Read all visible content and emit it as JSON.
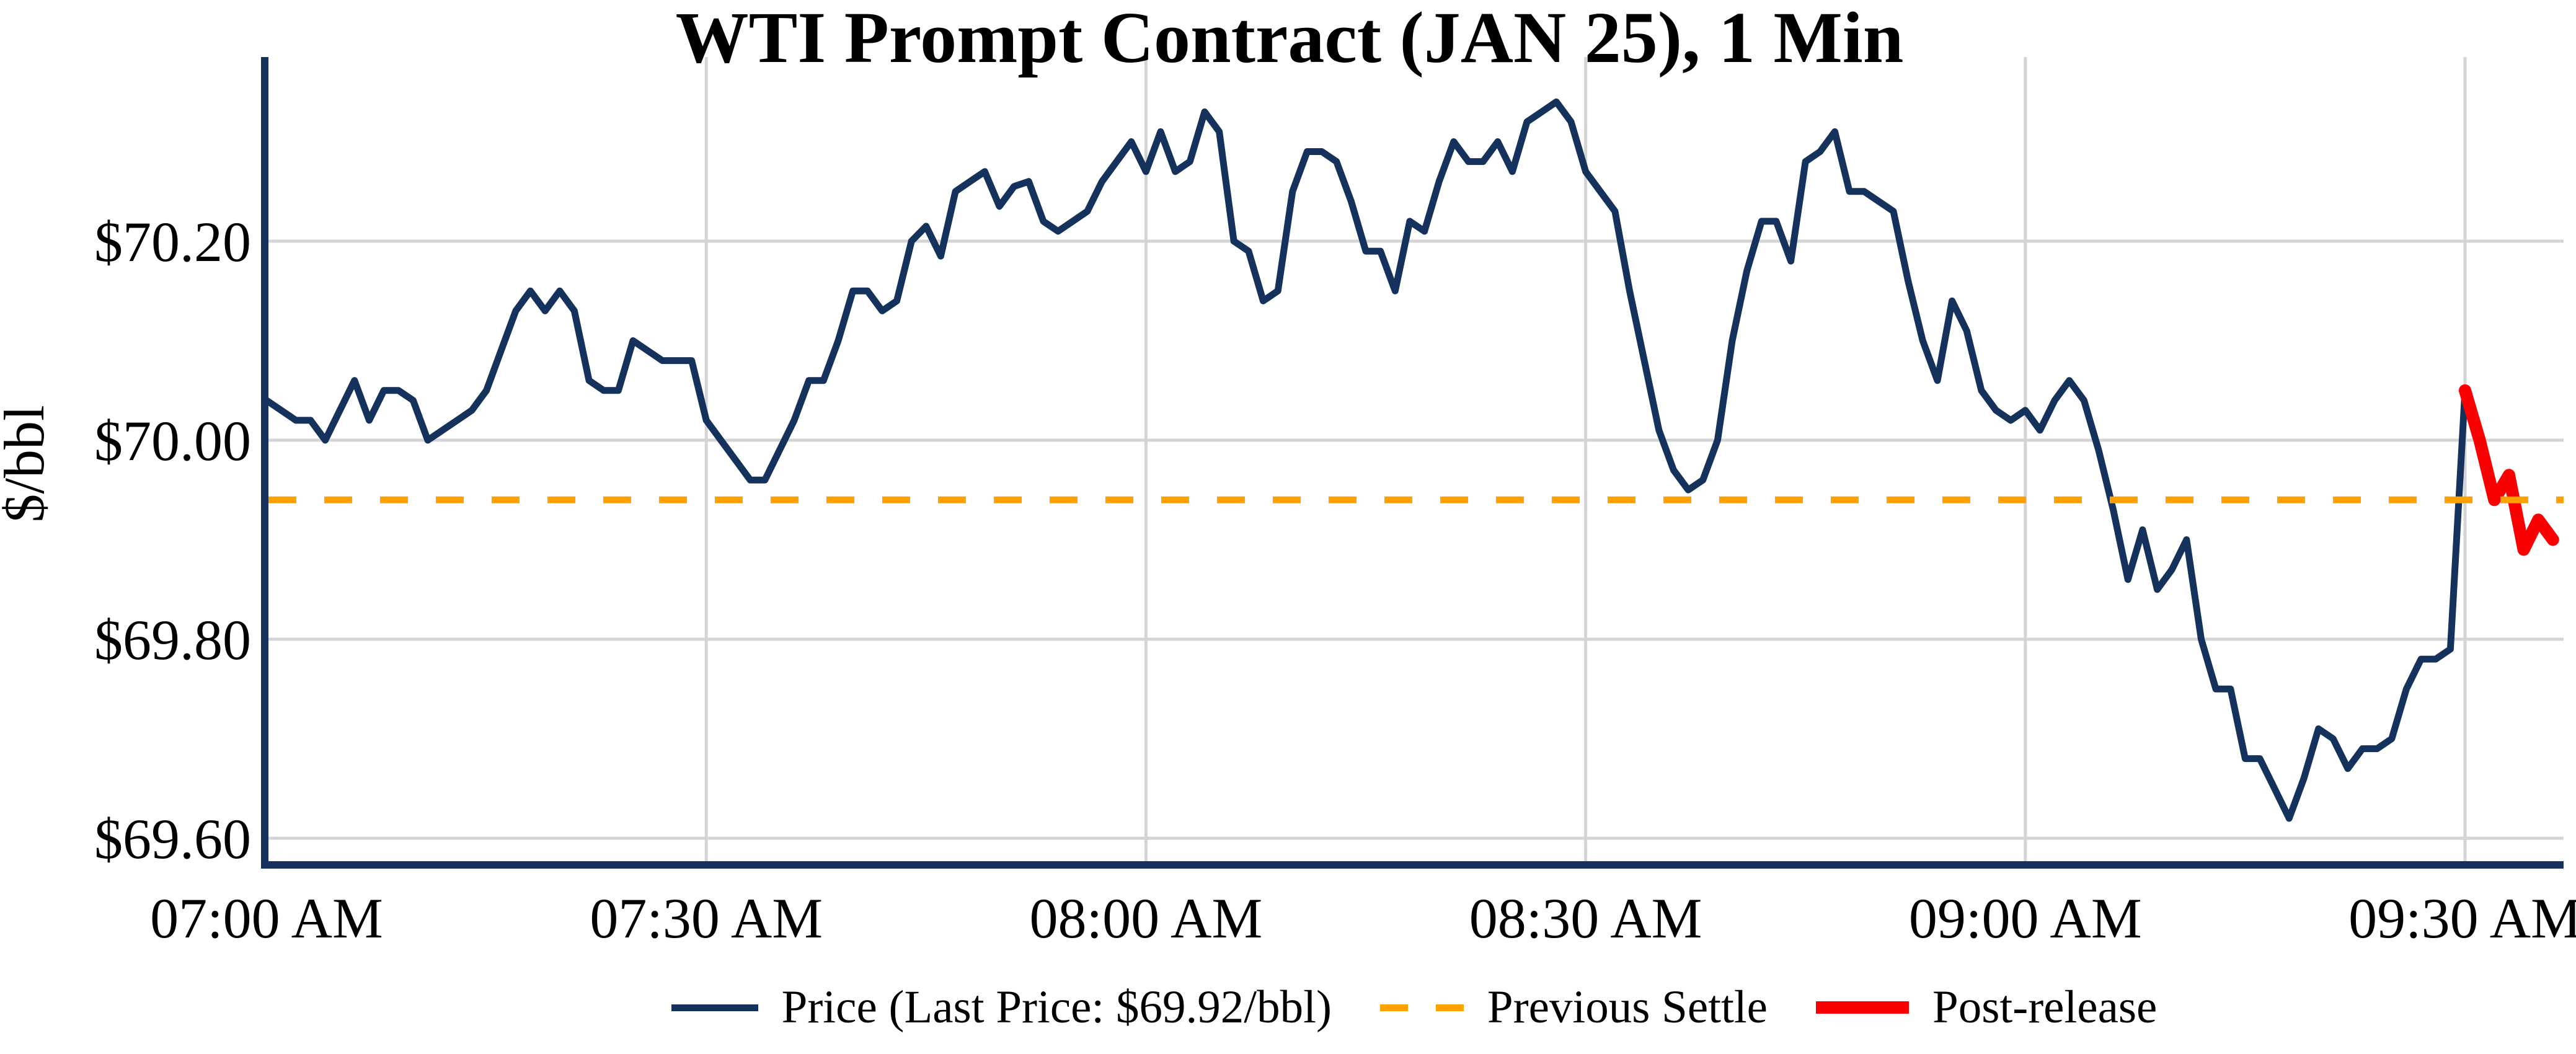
{
  "title": "WTI Prompt Contract (JAN 25), 1 Min",
  "y_axis": {
    "label": "$/bbl",
    "ticks": [
      {
        "label": "$69.60",
        "value": 69.6
      },
      {
        "label": "$69.80",
        "value": 69.8
      },
      {
        "label": "$70.00",
        "value": 70.0
      },
      {
        "label": "$70.20",
        "value": 70.2
      }
    ]
  },
  "x_axis": {
    "ticks": [
      {
        "label": "07:00 AM",
        "minute": 0
      },
      {
        "label": "07:30 AM",
        "minute": 30
      },
      {
        "label": "08:00 AM",
        "minute": 60
      },
      {
        "label": "08:30 AM",
        "minute": 90
      },
      {
        "label": "09:00 AM",
        "minute": 120
      },
      {
        "label": "09:30 AM",
        "minute": 150
      }
    ]
  },
  "legend": {
    "price_label": "Price (Last Price: $69.92/bbl)",
    "settle_label": "Previous Settle",
    "post_label": "Post-release"
  },
  "colors": {
    "price": "#14325C",
    "settle": "#FFA200",
    "post": "#FA0000",
    "grid": "#D4D4D4",
    "axis": "#14325C",
    "text": "#000000",
    "background": "#FFFFFF"
  },
  "chart_data": {
    "type": "line",
    "title": "WTI Prompt Contract (JAN 25), 1 Min",
    "xlabel": "",
    "ylabel": "$/bbl",
    "x_unit": "minutes since 07:00 AM, 1-minute intervals",
    "x_tick_labels": [
      "07:00 AM",
      "07:30 AM",
      "08:00 AM",
      "08:30 AM",
      "09:00 AM",
      "09:30 AM"
    ],
    "x_tick_minutes": [
      0,
      30,
      60,
      90,
      120,
      150
    ],
    "ylim": [
      69.575,
      70.385
    ],
    "xlim_minutes": [
      0,
      156.8
    ],
    "grid": true,
    "legend_position": "bottom",
    "previous_settle": 69.94,
    "last_price": 69.92,
    "series": [
      {
        "name": "Price",
        "type": "line",
        "color": "#14325C",
        "start_minute": 0,
        "step_minutes": 1,
        "values": [
          70.04,
          70.03,
          70.02,
          70.02,
          70.0,
          70.03,
          70.06,
          70.02,
          70.05,
          70.05,
          70.04,
          70.0,
          70.01,
          70.02,
          70.03,
          70.05,
          70.09,
          70.13,
          70.15,
          70.13,
          70.15,
          70.13,
          70.06,
          70.05,
          70.05,
          70.1,
          70.09,
          70.08,
          70.08,
          70.08,
          70.02,
          70.0,
          69.98,
          69.96,
          69.96,
          69.99,
          70.02,
          70.06,
          70.06,
          70.1,
          70.15,
          70.15,
          70.13,
          70.14,
          70.2,
          70.215,
          70.185,
          70.25,
          70.26,
          70.27,
          70.235,
          70.255,
          70.26,
          70.22,
          70.21,
          70.22,
          70.23,
          70.26,
          70.28,
          70.3,
          70.27,
          70.31,
          70.27,
          70.28,
          70.33,
          70.31,
          70.2,
          70.19,
          70.14,
          70.15,
          70.25,
          70.29,
          70.29,
          70.28,
          70.24,
          70.19,
          70.19,
          70.15,
          70.22,
          70.21,
          70.26,
          70.3,
          70.28,
          70.28,
          70.3,
          70.27,
          70.32,
          70.33,
          70.34,
          70.32,
          70.27,
          70.25,
          70.23,
          70.15,
          70.08,
          70.01,
          69.97,
          69.95,
          69.96,
          70.0,
          70.1,
          70.17,
          70.22,
          70.22,
          70.18,
          70.28,
          70.29,
          70.31,
          70.25,
          70.25,
          70.24,
          70.23,
          70.16,
          70.1,
          70.06,
          70.14,
          70.11,
          70.05,
          70.03,
          70.02,
          70.03,
          70.01,
          70.04,
          70.06,
          70.04,
          69.99,
          69.93,
          69.86,
          69.91,
          69.85,
          69.87,
          69.9,
          69.8,
          69.75,
          69.75,
          69.68,
          69.68,
          69.65,
          69.62,
          69.66,
          69.71,
          69.7,
          69.67,
          69.69,
          69.69,
          69.7,
          69.75,
          69.78,
          69.78,
          69.79,
          70.05
        ]
      },
      {
        "name": "Post-release",
        "type": "line",
        "color": "#FA0000",
        "start_minute": 150,
        "step_minutes": 1,
        "values": [
          70.05,
          70.0,
          69.94,
          69.965,
          69.89,
          69.92,
          69.9
        ]
      },
      {
        "name": "Previous Settle",
        "type": "hline",
        "style": "dashed",
        "color": "#FFA200",
        "value": 69.94
      }
    ]
  }
}
